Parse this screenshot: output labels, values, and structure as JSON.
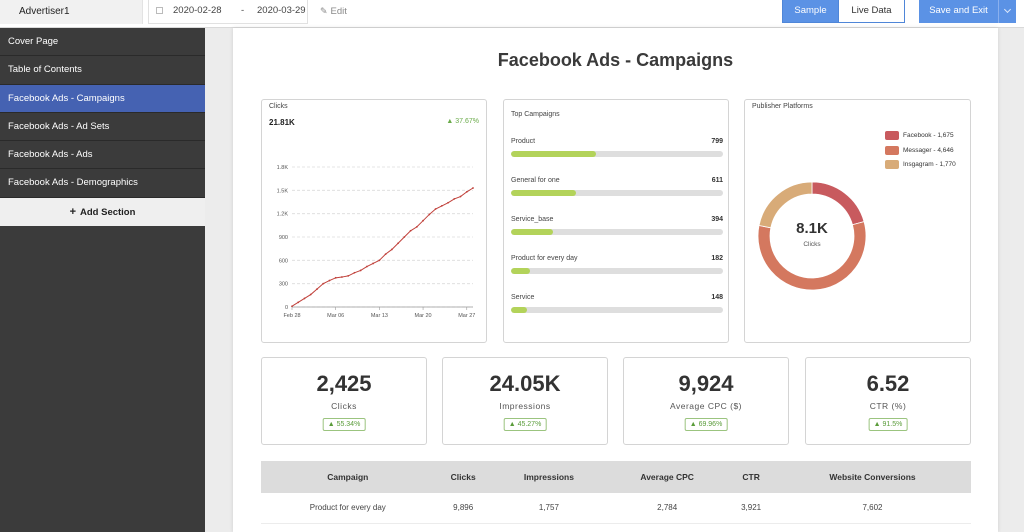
{
  "topbar": {
    "account": "Advertiser1",
    "date_start": "2020-02-28",
    "date_sep": "-",
    "date_end": "2020-03-29",
    "edit_label": "Edit",
    "sample_label": "Sample",
    "live_label": "Live Data",
    "save_label": "Save and Exit"
  },
  "sidebar": {
    "items": [
      {
        "label": "Cover Page"
      },
      {
        "label": "Table of Contents"
      },
      {
        "label": "Facebook Ads - Campaigns"
      },
      {
        "label": "Facebook Ads - Ad Sets"
      },
      {
        "label": "Facebook Ads - Ads"
      },
      {
        "label": "Facebook Ads - Demographics"
      }
    ],
    "active_index": 2,
    "add_label": "Add Section"
  },
  "page": {
    "title": "Facebook Ads - Campaigns"
  },
  "clicks_card": {
    "title": "Clicks",
    "total": "21.81K",
    "delta": "37.67%"
  },
  "chart_data": {
    "type": "line",
    "title": "Clicks",
    "xlabel": "",
    "ylabel": "",
    "ylim": [
      0,
      1800
    ],
    "yticks": [
      "0",
      "300",
      "600",
      "900",
      "1.2K",
      "1.5K",
      "1.8K"
    ],
    "ytick_values": [
      0,
      300,
      600,
      900,
      1200,
      1500,
      1800
    ],
    "xticks": [
      "Feb 28",
      "Mar 06",
      "Mar 13",
      "Mar 20",
      "Mar 27"
    ],
    "xtick_index": [
      0,
      7,
      14,
      21,
      28
    ],
    "grid": true,
    "series": [
      {
        "color": "#c0403a",
        "values": [
          10,
          60,
          110,
          160,
          230,
          300,
          340,
          375,
          385,
          400,
          440,
          470,
          520,
          560,
          600,
          680,
          740,
          820,
          900,
          980,
          1030,
          1110,
          1190,
          1260,
          1300,
          1340,
          1390,
          1420,
          1480,
          1530
        ]
      }
    ]
  },
  "top_campaigns": {
    "title": "Top Campaigns",
    "max": 2000,
    "items": [
      {
        "label": "Product",
        "value": "799",
        "num": 799
      },
      {
        "label": "General for one",
        "value": "611",
        "num": 611
      },
      {
        "label": "Service_base",
        "value": "394",
        "num": 394
      },
      {
        "label": "Product for every day",
        "value": "182",
        "num": 182
      },
      {
        "label": "Service",
        "value": "148",
        "num": 148
      }
    ]
  },
  "publisher_platforms": {
    "title": "Publisher Platforms",
    "center_value": "8.1K",
    "center_label": "Clicks",
    "items": [
      {
        "label": "Facebook - 1,675",
        "num": 1675,
        "color": "#c85a5e"
      },
      {
        "label": "Messager - 4,646",
        "num": 4646,
        "color": "#d4785f"
      },
      {
        "label": "Insgagram - 1,770",
        "num": 1770,
        "color": "#d8ab78"
      }
    ]
  },
  "kpis": [
    {
      "value": "2,425",
      "label": "Clicks",
      "delta": "55.34%"
    },
    {
      "value": "24.05K",
      "label": "Impressions",
      "delta": "45.27%"
    },
    {
      "value": "9,924",
      "label": "Average CPC ($)",
      "delta": "69.96%"
    },
    {
      "value": "6.52",
      "label": "CTR (%)",
      "delta": "91.5%"
    }
  ],
  "table": {
    "headers": [
      "Campaign",
      "Clicks",
      "Impressions",
      "Average CPC",
      "CTR",
      "Website Conversions"
    ],
    "rows": [
      [
        "Product for every day",
        "9,896",
        "1,757",
        "2,784",
        "3,921",
        "7,602"
      ]
    ]
  },
  "colors": {
    "accent": "#5b92e5",
    "active_nav": "#4562b2",
    "bar_fill": "#b3d35a",
    "positive": "#6aab4a"
  }
}
